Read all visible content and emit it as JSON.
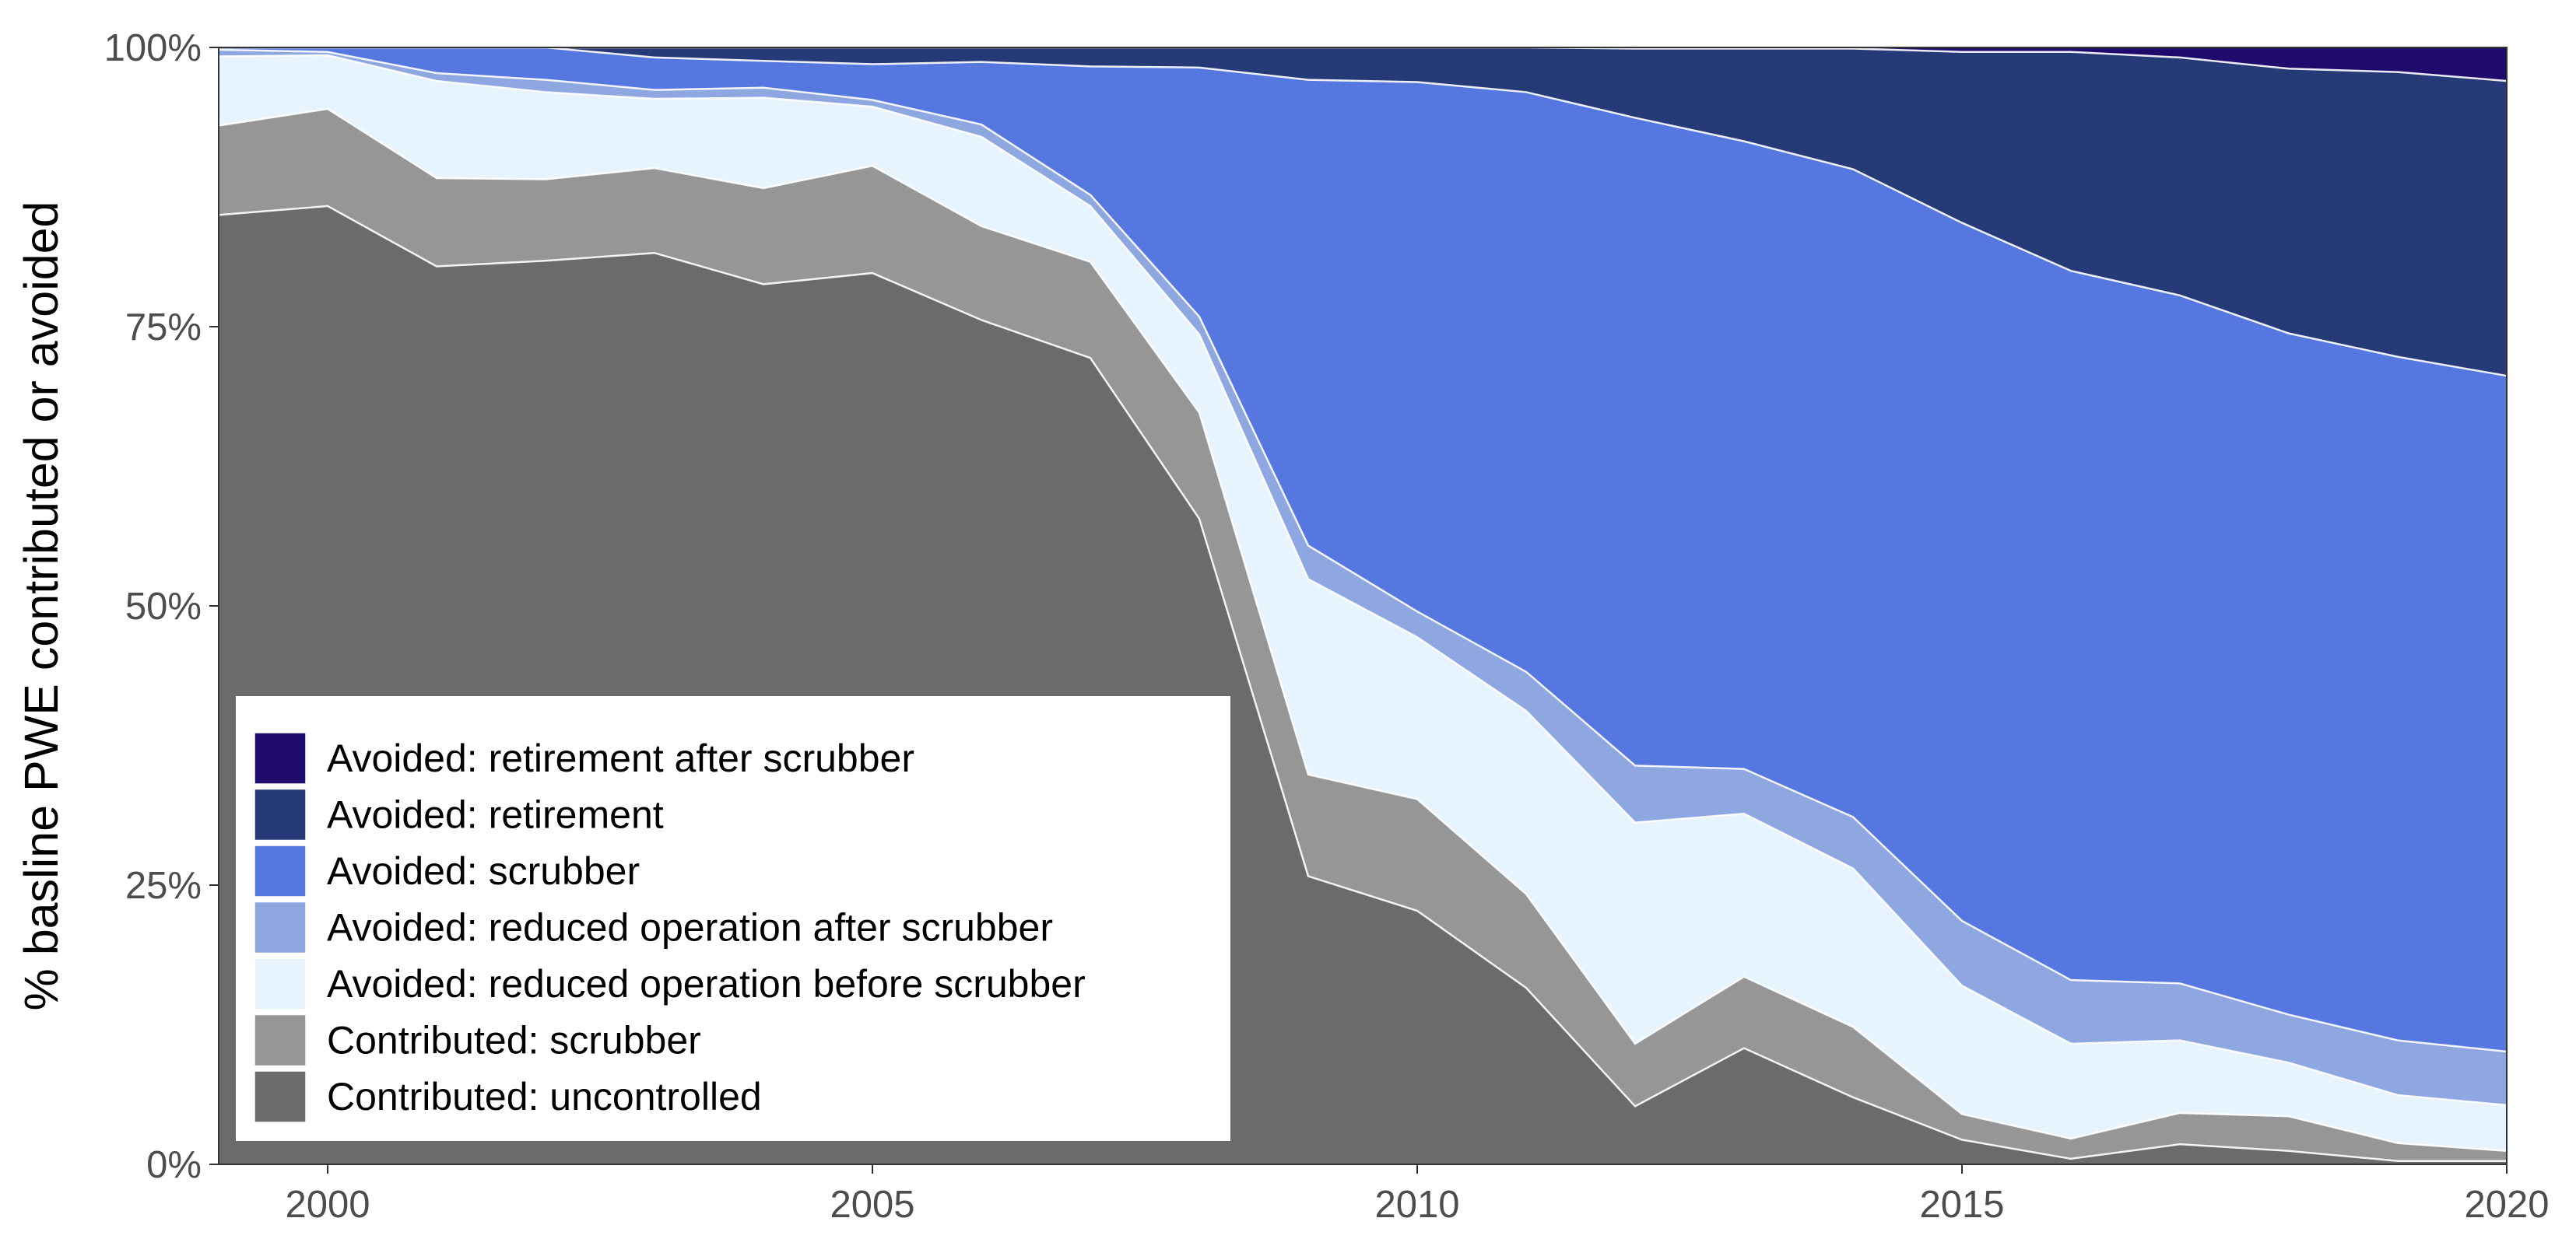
{
  "chart_data": {
    "type": "area",
    "stacked": true,
    "normalized": true,
    "title": "",
    "xlabel": "",
    "ylabel": "% basline PWE contributed or avoided",
    "xlim": [
      1999,
      2020
    ],
    "ylim": [
      0,
      100
    ],
    "x_ticks": [
      2000,
      2005,
      2010,
      2015,
      2020
    ],
    "x_tick_labels": [
      "2000",
      "2005",
      "2010",
      "2015",
      "2020"
    ],
    "y_ticks": [
      0,
      25,
      50,
      75,
      100
    ],
    "y_tick_labels": [
      "0%",
      "25%",
      "50%",
      "75%",
      "100%"
    ],
    "grid": false,
    "legend_position": "bottom-left inside",
    "x": [
      1999,
      2000,
      2001,
      2002,
      2003,
      2004,
      2005,
      2006,
      2007,
      2008,
      2009,
      2010,
      2011,
      2012,
      2013,
      2014,
      2015,
      2016,
      2017,
      2018,
      2019,
      2020
    ],
    "series": [
      {
        "name": "Contributed: uncontrolled",
        "color": "#6b6b6b",
        "values": [
          85.0,
          85.8,
          80.4,
          80.9,
          81.6,
          78.8,
          79.8,
          75.6,
          72.2,
          57.8,
          25.8,
          22.7,
          15.8,
          5.2,
          10.4,
          6.0,
          2.2,
          0.5,
          1.8,
          1.2,
          0.3,
          0.3
        ]
      },
      {
        "name": "Contributed: scrubber",
        "color": "#969696",
        "values": [
          8.0,
          8.7,
          7.9,
          7.3,
          7.6,
          8.6,
          9.6,
          8.4,
          8.6,
          9.5,
          9.1,
          10.0,
          8.4,
          5.6,
          6.4,
          6.3,
          2.3,
          1.8,
          2.8,
          3.1,
          1.6,
          0.9
        ]
      },
      {
        "name": "Avoided: reduced operation before scrubber",
        "color": "#e8f4fd",
        "values": [
          6.2,
          4.8,
          8.7,
          7.8,
          6.2,
          8.1,
          5.3,
          8.0,
          5.0,
          7.0,
          17.5,
          14.5,
          16.4,
          19.8,
          14.6,
          14.2,
          11.5,
          8.5,
          6.5,
          4.8,
          4.3,
          4.1
        ]
      },
      {
        "name": "Avoided: reduced operation after scrubber",
        "color": "#8fa7e0",
        "values": [
          0.6,
          0.3,
          0.7,
          1.1,
          0.8,
          0.9,
          0.6,
          1.1,
          1.0,
          1.6,
          3.0,
          2.3,
          3.5,
          5.1,
          4.0,
          4.6,
          5.8,
          5.7,
          5.1,
          4.3,
          4.9,
          4.8
        ]
      },
      {
        "name": "Avoided: scrubber",
        "color": "#5577df",
        "values": [
          0.2,
          0.4,
          2.3,
          2.9,
          2.9,
          2.4,
          3.2,
          5.6,
          11.5,
          22.3,
          41.7,
          47.4,
          51.9,
          58.0,
          56.2,
          58.0,
          62.5,
          63.5,
          61.6,
          61.0,
          61.2,
          60.5
        ]
      },
      {
        "name": "Avoided: retirement",
        "color": "#263a78",
        "values": [
          0.0,
          0.0,
          0.0,
          0.0,
          0.9,
          1.2,
          1.5,
          1.3,
          1.7,
          1.8,
          2.9,
          3.1,
          4.0,
          6.2,
          8.3,
          10.8,
          15.3,
          19.6,
          21.3,
          23.7,
          25.5,
          26.4
        ]
      },
      {
        "name": "Avoided: retirement after scrubber",
        "color": "#1e0b6b",
        "values": [
          0.0,
          0.0,
          0.0,
          0.0,
          0.0,
          0.0,
          0.0,
          0.0,
          0.0,
          0.0,
          0.0,
          0.0,
          0.0,
          0.1,
          0.1,
          0.1,
          0.4,
          0.4,
          0.9,
          1.9,
          2.2,
          3.0
        ]
      }
    ]
  }
}
